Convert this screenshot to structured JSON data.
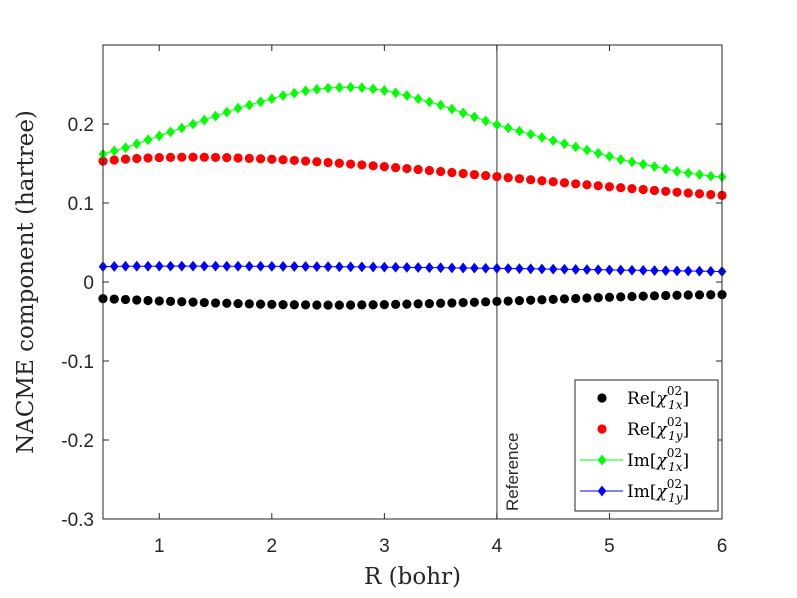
{
  "chart_data": {
    "type": "scatter",
    "xlabel": "R (bohr)",
    "ylabel": "NACME component (hartree)",
    "xlim": [
      0.5,
      6
    ],
    "ylim": [
      -0.3,
      0.3
    ],
    "xticks": [
      "1",
      "2",
      "3",
      "4",
      "5",
      "6"
    ],
    "xtick_values": [
      1,
      2,
      3,
      4,
      5,
      6
    ],
    "yticks": [
      "0.2",
      "0.1",
      "0",
      "-0.1",
      "-0.2",
      "-0.3"
    ],
    "ytick_values": [
      0.2,
      0.1,
      0,
      -0.1,
      -0.2,
      -0.3
    ],
    "reference_line": {
      "x": 4,
      "label": "Reference"
    },
    "legend_position": "bottom-right",
    "x": [
      0.5,
      0.6,
      0.7,
      0.8,
      0.9,
      1.0,
      1.1,
      1.2,
      1.3,
      1.4,
      1.5,
      1.6,
      1.7,
      1.8,
      1.9,
      2.0,
      2.1,
      2.2,
      2.3,
      2.4,
      2.5,
      2.6,
      2.7,
      2.8,
      2.9,
      3.0,
      3.1,
      3.2,
      3.3,
      3.4,
      3.5,
      3.6,
      3.7,
      3.8,
      3.9,
      4.0,
      4.1,
      4.2,
      4.3,
      4.4,
      4.5,
      4.6,
      4.7,
      4.8,
      4.9,
      5.0,
      5.1,
      5.2,
      5.3,
      5.4,
      5.5,
      5.6,
      5.7,
      5.8,
      5.9,
      6.0
    ],
    "series": [
      {
        "name": "Re[χ_1x^02]",
        "legend_prefix": "Re[",
        "legend_symbol": "χ",
        "legend_sub": "1x",
        "legend_sup": "02",
        "legend_suffix": "]",
        "color": "#000000",
        "marker": "circle",
        "line": false,
        "values": [
          -0.021,
          -0.0216,
          -0.0222,
          -0.0228,
          -0.0234,
          -0.024,
          -0.0245,
          -0.025,
          -0.0255,
          -0.026,
          -0.0265,
          -0.0269,
          -0.0273,
          -0.0277,
          -0.028,
          -0.0283,
          -0.0286,
          -0.0288,
          -0.029,
          -0.0291,
          -0.0292,
          -0.0292,
          -0.0291,
          -0.029,
          -0.0288,
          -0.0286,
          -0.0283,
          -0.028,
          -0.0277,
          -0.0273,
          -0.0269,
          -0.0265,
          -0.026,
          -0.0256,
          -0.0251,
          -0.0246,
          -0.0241,
          -0.0236,
          -0.023,
          -0.0225,
          -0.022,
          -0.0214,
          -0.0209,
          -0.0203,
          -0.0198,
          -0.0193,
          -0.0188,
          -0.0183,
          -0.0179,
          -0.0175,
          -0.0171,
          -0.0168,
          -0.0165,
          -0.0163,
          -0.0161,
          -0.016
        ]
      },
      {
        "name": "Re[χ_1y^02]",
        "legend_prefix": "Re[",
        "legend_symbol": "χ",
        "legend_sub": "1y",
        "legend_sup": "02",
        "legend_suffix": "]",
        "color": "#ff0000",
        "marker": "circle",
        "line": false,
        "values": [
          0.153,
          0.1545,
          0.1555,
          0.1563,
          0.157,
          0.1575,
          0.1578,
          0.158,
          0.158,
          0.1579,
          0.1577,
          0.1574,
          0.157,
          0.1565,
          0.156,
          0.1554,
          0.1547,
          0.1539,
          0.1531,
          0.1522,
          0.1513,
          0.1503,
          0.1493,
          0.1482,
          0.1471,
          0.146,
          0.1448,
          0.1436,
          0.1424,
          0.1412,
          0.1399,
          0.1386,
          0.1373,
          0.136,
          0.1347,
          0.1334,
          0.1321,
          0.1308,
          0.1295,
          0.1282,
          0.1269,
          0.1256,
          0.1243,
          0.1231,
          0.1218,
          0.1206,
          0.1194,
          0.1182,
          0.1171,
          0.1159,
          0.1148,
          0.1137,
          0.1127,
          0.1117,
          0.1107,
          0.1097
        ]
      },
      {
        "name": "Im[χ_1x^02]",
        "legend_prefix": "Im[",
        "legend_symbol": "χ",
        "legend_sub": "1x",
        "legend_sup": "02",
        "legend_suffix": "]",
        "color": "#00ff00",
        "marker": "diamond",
        "line": true,
        "values": [
          0.162,
          0.166,
          0.17,
          0.175,
          0.18,
          0.185,
          0.19,
          0.195,
          0.2,
          0.205,
          0.21,
          0.215,
          0.22,
          0.224,
          0.228,
          0.232,
          0.236,
          0.239,
          0.242,
          0.244,
          0.2455,
          0.2462,
          0.2465,
          0.246,
          0.2445,
          0.2425,
          0.2395,
          0.236,
          0.232,
          0.228,
          0.224,
          0.219,
          0.214,
          0.209,
          0.204,
          0.199,
          0.195,
          0.191,
          0.187,
          0.183,
          0.179,
          0.175,
          0.171,
          0.167,
          0.163,
          0.159,
          0.155,
          0.152,
          0.149,
          0.146,
          0.143,
          0.14,
          0.138,
          0.136,
          0.134,
          0.133
        ]
      },
      {
        "name": "Im[χ_1y^02]",
        "legend_prefix": "Im[",
        "legend_symbol": "χ",
        "legend_sub": "1y",
        "legend_sup": "02",
        "legend_suffix": "]",
        "color": "#0000ff",
        "marker": "diamond",
        "line": true,
        "values": [
          0.0195,
          0.0197,
          0.0199,
          0.02,
          0.02,
          0.0201,
          0.0201,
          0.0201,
          0.0201,
          0.0201,
          0.0201,
          0.02,
          0.02,
          0.0199,
          0.0199,
          0.0198,
          0.0198,
          0.0197,
          0.0196,
          0.0195,
          0.0194,
          0.0193,
          0.0192,
          0.0191,
          0.019,
          0.0188,
          0.0187,
          0.0185,
          0.0184,
          0.0182,
          0.0181,
          0.0179,
          0.0178,
          0.0176,
          0.0174,
          0.0173,
          0.0171,
          0.0169,
          0.0167,
          0.0165,
          0.0163,
          0.0161,
          0.0159,
          0.0157,
          0.0155,
          0.0153,
          0.0151,
          0.0149,
          0.0147,
          0.0145,
          0.0143,
          0.0141,
          0.0139,
          0.0137,
          0.0135,
          0.0133
        ]
      }
    ]
  }
}
